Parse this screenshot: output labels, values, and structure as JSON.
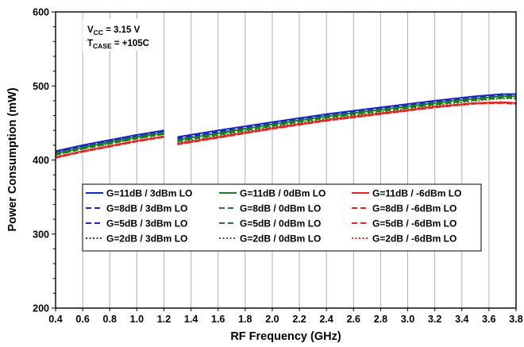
{
  "chart_data": {
    "type": "line",
    "xlabel": "RF Frequency (GHz)",
    "ylabel": "Power Consumption (mW)",
    "xlim": [
      0.4,
      3.8
    ],
    "ylim": [
      200,
      600
    ],
    "x_ticks": [
      "0.4",
      "0.6",
      "0.8",
      "1.0",
      "1.2",
      "1.4",
      "1.6",
      "1.8",
      "2.0",
      "2.2",
      "2.4",
      "2.6",
      "2.8",
      "3.0",
      "3.2",
      "3.4",
      "3.6",
      "3.8"
    ],
    "y_ticks": [
      "200",
      "300",
      "400",
      "500",
      "600"
    ],
    "grid": "vertical",
    "legend_placement": "center",
    "annotation": {
      "line1_prefix": "V",
      "line1_sub": "CC",
      "line1_suffix": " = 3.15 V",
      "line2_prefix": "T",
      "line2_sub": "CASE",
      "line2_suffix": " = +105C"
    },
    "colors": {
      "3dBm": "#1428c8",
      "0dBm": "#1f7a1f",
      "-6dBm": "#e8231e"
    },
    "segments": [
      {
        "x": [
          0.4,
          0.6,
          0.8,
          1.0,
          1.2
        ]
      },
      {
        "x": [
          1.3,
          1.6,
          2.0,
          2.4,
          2.8,
          3.2,
          3.5,
          3.7,
          3.8
        ]
      }
    ],
    "series": [
      {
        "name": "G=11dB / 3dBm LO",
        "lo": "3dBm",
        "style": "solid",
        "values": [
          [
            412,
            420,
            427,
            434,
            440
          ],
          [
            431,
            440,
            451,
            462,
            471,
            480,
            486,
            489,
            489
          ]
        ]
      },
      {
        "name": "G=11dB / 0dBm LO",
        "lo": "0dBm",
        "style": "solid",
        "values": [
          [
            409,
            417,
            424,
            431,
            437
          ],
          [
            427,
            436,
            448,
            459,
            468,
            477,
            483,
            486,
            486
          ]
        ]
      },
      {
        "name": "G=11dB / -6dBm LO",
        "lo": "-6dBm",
        "style": "solid",
        "values": [
          [
            404,
            412,
            419,
            426,
            432
          ],
          [
            422,
            431,
            443,
            454,
            463,
            472,
            477,
            478,
            477
          ]
        ]
      },
      {
        "name": "G=8dB / 3dBm LO",
        "lo": "3dBm",
        "style": "dashed",
        "values": [
          [
            411,
            419,
            426,
            433,
            439
          ],
          [
            430,
            439,
            450,
            461,
            470,
            479,
            485,
            488,
            488
          ]
        ]
      },
      {
        "name": "G=8dB / 0dBm LO",
        "lo": "0dBm",
        "style": "dashed",
        "values": [
          [
            408,
            416,
            423,
            430,
            436
          ],
          [
            426,
            435,
            447,
            458,
            467,
            476,
            482,
            485,
            485
          ]
        ]
      },
      {
        "name": "G=8dB / -6dBm LO",
        "lo": "-6dBm",
        "style": "dashed",
        "values": [
          [
            404,
            412,
            419,
            426,
            432
          ],
          [
            422,
            431,
            443,
            454,
            463,
            472,
            477,
            478,
            477
          ]
        ]
      },
      {
        "name": "G=5dB / 3dBm LO",
        "lo": "3dBm",
        "style": "dashed",
        "values": [
          [
            410,
            418,
            425,
            432,
            438
          ],
          [
            429,
            438,
            449,
            460,
            469,
            478,
            484,
            487,
            487
          ]
        ]
      },
      {
        "name": "G=5dB / 0dBm LO",
        "lo": "0dBm",
        "style": "dashed",
        "values": [
          [
            407,
            415,
            422,
            429,
            435
          ],
          [
            425,
            434,
            446,
            457,
            466,
            475,
            481,
            484,
            484
          ]
        ]
      },
      {
        "name": "G=5dB / -6dBm LO",
        "lo": "-6dBm",
        "style": "dashed",
        "values": [
          [
            403,
            411,
            418,
            425,
            431
          ],
          [
            421,
            430,
            442,
            453,
            462,
            471,
            476,
            477,
            476
          ]
        ]
      },
      {
        "name": "G=2dB / 3dBm LO",
        "lo": "3dBm",
        "style": "dotted",
        "values": [
          [
            410,
            418,
            425,
            432,
            438
          ],
          [
            428,
            437,
            448,
            459,
            468,
            477,
            483,
            486,
            486
          ]
        ]
      },
      {
        "name": "G=2dB / 0dBm LO",
        "lo": "0dBm",
        "style": "dotted",
        "values": [
          [
            407,
            415,
            422,
            429,
            435
          ],
          [
            424,
            433,
            445,
            456,
            465,
            474,
            480,
            483,
            483
          ]
        ]
      },
      {
        "name": "G=2dB / -6dBm LO",
        "lo": "-6dBm",
        "style": "dotted",
        "values": [
          [
            403,
            411,
            418,
            425,
            431
          ],
          [
            421,
            430,
            442,
            453,
            462,
            471,
            476,
            477,
            476
          ]
        ]
      }
    ]
  }
}
